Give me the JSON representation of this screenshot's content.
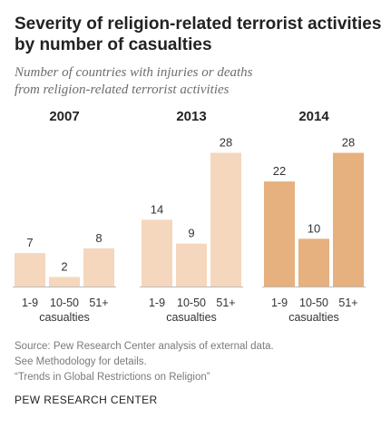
{
  "title_lines": [
    "Severity of religion-related terrorist activities,",
    "by number of casualties"
  ],
  "subtitle_lines": [
    "Number of countries with injuries or deaths",
    "from religion-related terrorist activities"
  ],
  "colors": {
    "light": "#f4d7bd",
    "dark": "#e6b07f",
    "axis": "#bbbbbb"
  },
  "chart_data": [
    {
      "type": "bar",
      "title": "2007",
      "categories": [
        "1-9",
        "10-50",
        "51+"
      ],
      "values": [
        7,
        2,
        8
      ],
      "xlabel": "casualties",
      "ylim": [
        0,
        30
      ],
      "color": "light"
    },
    {
      "type": "bar",
      "title": "2013",
      "categories": [
        "1-9",
        "10-50",
        "51+"
      ],
      "values": [
        14,
        9,
        28
      ],
      "xlabel": "casualties",
      "ylim": [
        0,
        30
      ],
      "color": "light"
    },
    {
      "type": "bar",
      "title": "2014",
      "categories": [
        "1-9",
        "10-50",
        "51+"
      ],
      "values": [
        22,
        10,
        28
      ],
      "xlabel": "casualties",
      "ylim": [
        0,
        30
      ],
      "color": "dark"
    }
  ],
  "source_lines": [
    "Source: Pew Research Center analysis of external data.",
    "See Methodology for details.",
    "“Trends in Global Restrictions on Religion”"
  ],
  "brand": "PEW RESEARCH CENTER"
}
